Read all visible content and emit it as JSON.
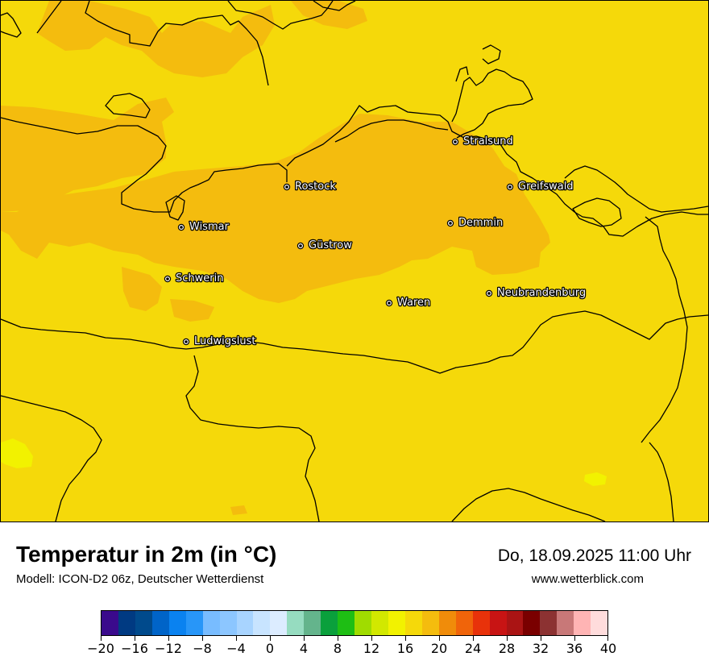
{
  "map": {
    "background_color": "#f5d90a",
    "warm_color": "#f4bc0e",
    "cool_color": "#f2f200",
    "border_color": "#000000",
    "cities": [
      {
        "name": "Stralsund"
      },
      {
        "name": "Rostock"
      },
      {
        "name": "Greifswald"
      },
      {
        "name": "Wismar"
      },
      {
        "name": "Demmin"
      },
      {
        "name": "Güstrow"
      },
      {
        "name": "Schwerin"
      },
      {
        "name": "Neubrandenburg"
      },
      {
        "name": "Waren"
      },
      {
        "name": "Ludwigslust"
      }
    ]
  },
  "footer": {
    "title": "Temperatur in 2m (in °C)",
    "subtitle": "Modell: ICON-D2 06z, Deutscher Wetterdienst",
    "datetime": "Do, 18.09.2025 11:00 Uhr",
    "website": "www.wetterblick.com"
  },
  "legend": {
    "min": -20,
    "max": 40,
    "tick_labels": [
      "−20",
      "−16",
      "−12",
      "−8",
      "−4",
      "0",
      "4",
      "8",
      "12",
      "16",
      "20",
      "24",
      "28",
      "32",
      "36",
      "40"
    ],
    "colors": [
      "#3a0a8c",
      "#003a82",
      "#004a8c",
      "#0064c8",
      "#0a82f0",
      "#2896f8",
      "#78bcff",
      "#8cc6ff",
      "#a8d4ff",
      "#c8e4ff",
      "#dcecff",
      "#96dcc0",
      "#64b48c",
      "#0aa03c",
      "#1ebe14",
      "#a0dc00",
      "#d2e800",
      "#f2f200",
      "#f5d90a",
      "#f4bc0e",
      "#f08c0a",
      "#f0640a",
      "#e8320a",
      "#c81414",
      "#aa1414",
      "#7a0000",
      "#8c3232",
      "#c87878",
      "#ffb4b4",
      "#ffdcdc"
    ]
  }
}
